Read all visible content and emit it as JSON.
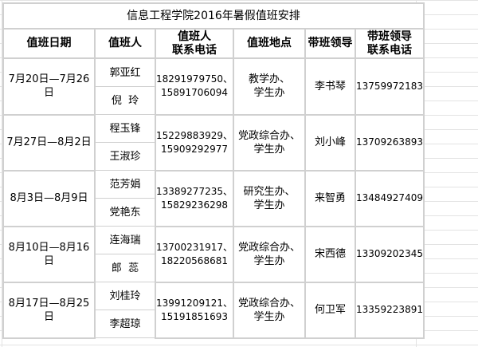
{
  "title": "信息工程学院2016年暑假值班安排",
  "headers": {
    "date": "值班日期",
    "person": "值班人",
    "person_phone_1": "值班人",
    "person_phone_2": "联系电话",
    "location": "值班地点",
    "leader": "带班领导",
    "leader_phone_1": "带班领导",
    "leader_phone_2": "联系电话"
  },
  "rows": [
    {
      "date": "7月20日—7月26日",
      "persons": [
        "郭亚红",
        "倪  玲"
      ],
      "phones": [
        "18291979750、",
        "15891706094"
      ],
      "location": [
        "教学办、",
        "学生办"
      ],
      "leader": "李书琴",
      "leader_phone": "13759972183"
    },
    {
      "date": "7月27日—8月2日",
      "persons": [
        "程玉锋",
        "王淑珍"
      ],
      "phones": [
        "15229883929、",
        "15909292977"
      ],
      "location": [
        "党政综合办、",
        "学生办"
      ],
      "leader": "刘小峰",
      "leader_phone": "13709263893"
    },
    {
      "date": "8月3日—8月9日",
      "persons": [
        "范芳娟",
        "党艳东"
      ],
      "phones": [
        "13389277235、",
        "15829236298"
      ],
      "location": [
        "研究生办、",
        "学生办"
      ],
      "leader": "来智勇",
      "leader_phone": "13484927409"
    },
    {
      "date": "8月10日—8月16日",
      "persons": [
        "连海瑞",
        "郎  蕊"
      ],
      "phones": [
        "13700231917、",
        "18220568681"
      ],
      "location": [
        "党政综合办、",
        "学生办"
      ],
      "leader": "宋西德",
      "leader_phone": "13309202345"
    },
    {
      "date": "8月17日—8月25日",
      "persons": [
        "刘桂玲",
        "李超琼"
      ],
      "phones": [
        "13991209121、",
        "15191851693"
      ],
      "location": [
        "党政综合办、",
        "学生办"
      ],
      "leader": "何卫军",
      "leader_phone": "13359223891"
    }
  ]
}
